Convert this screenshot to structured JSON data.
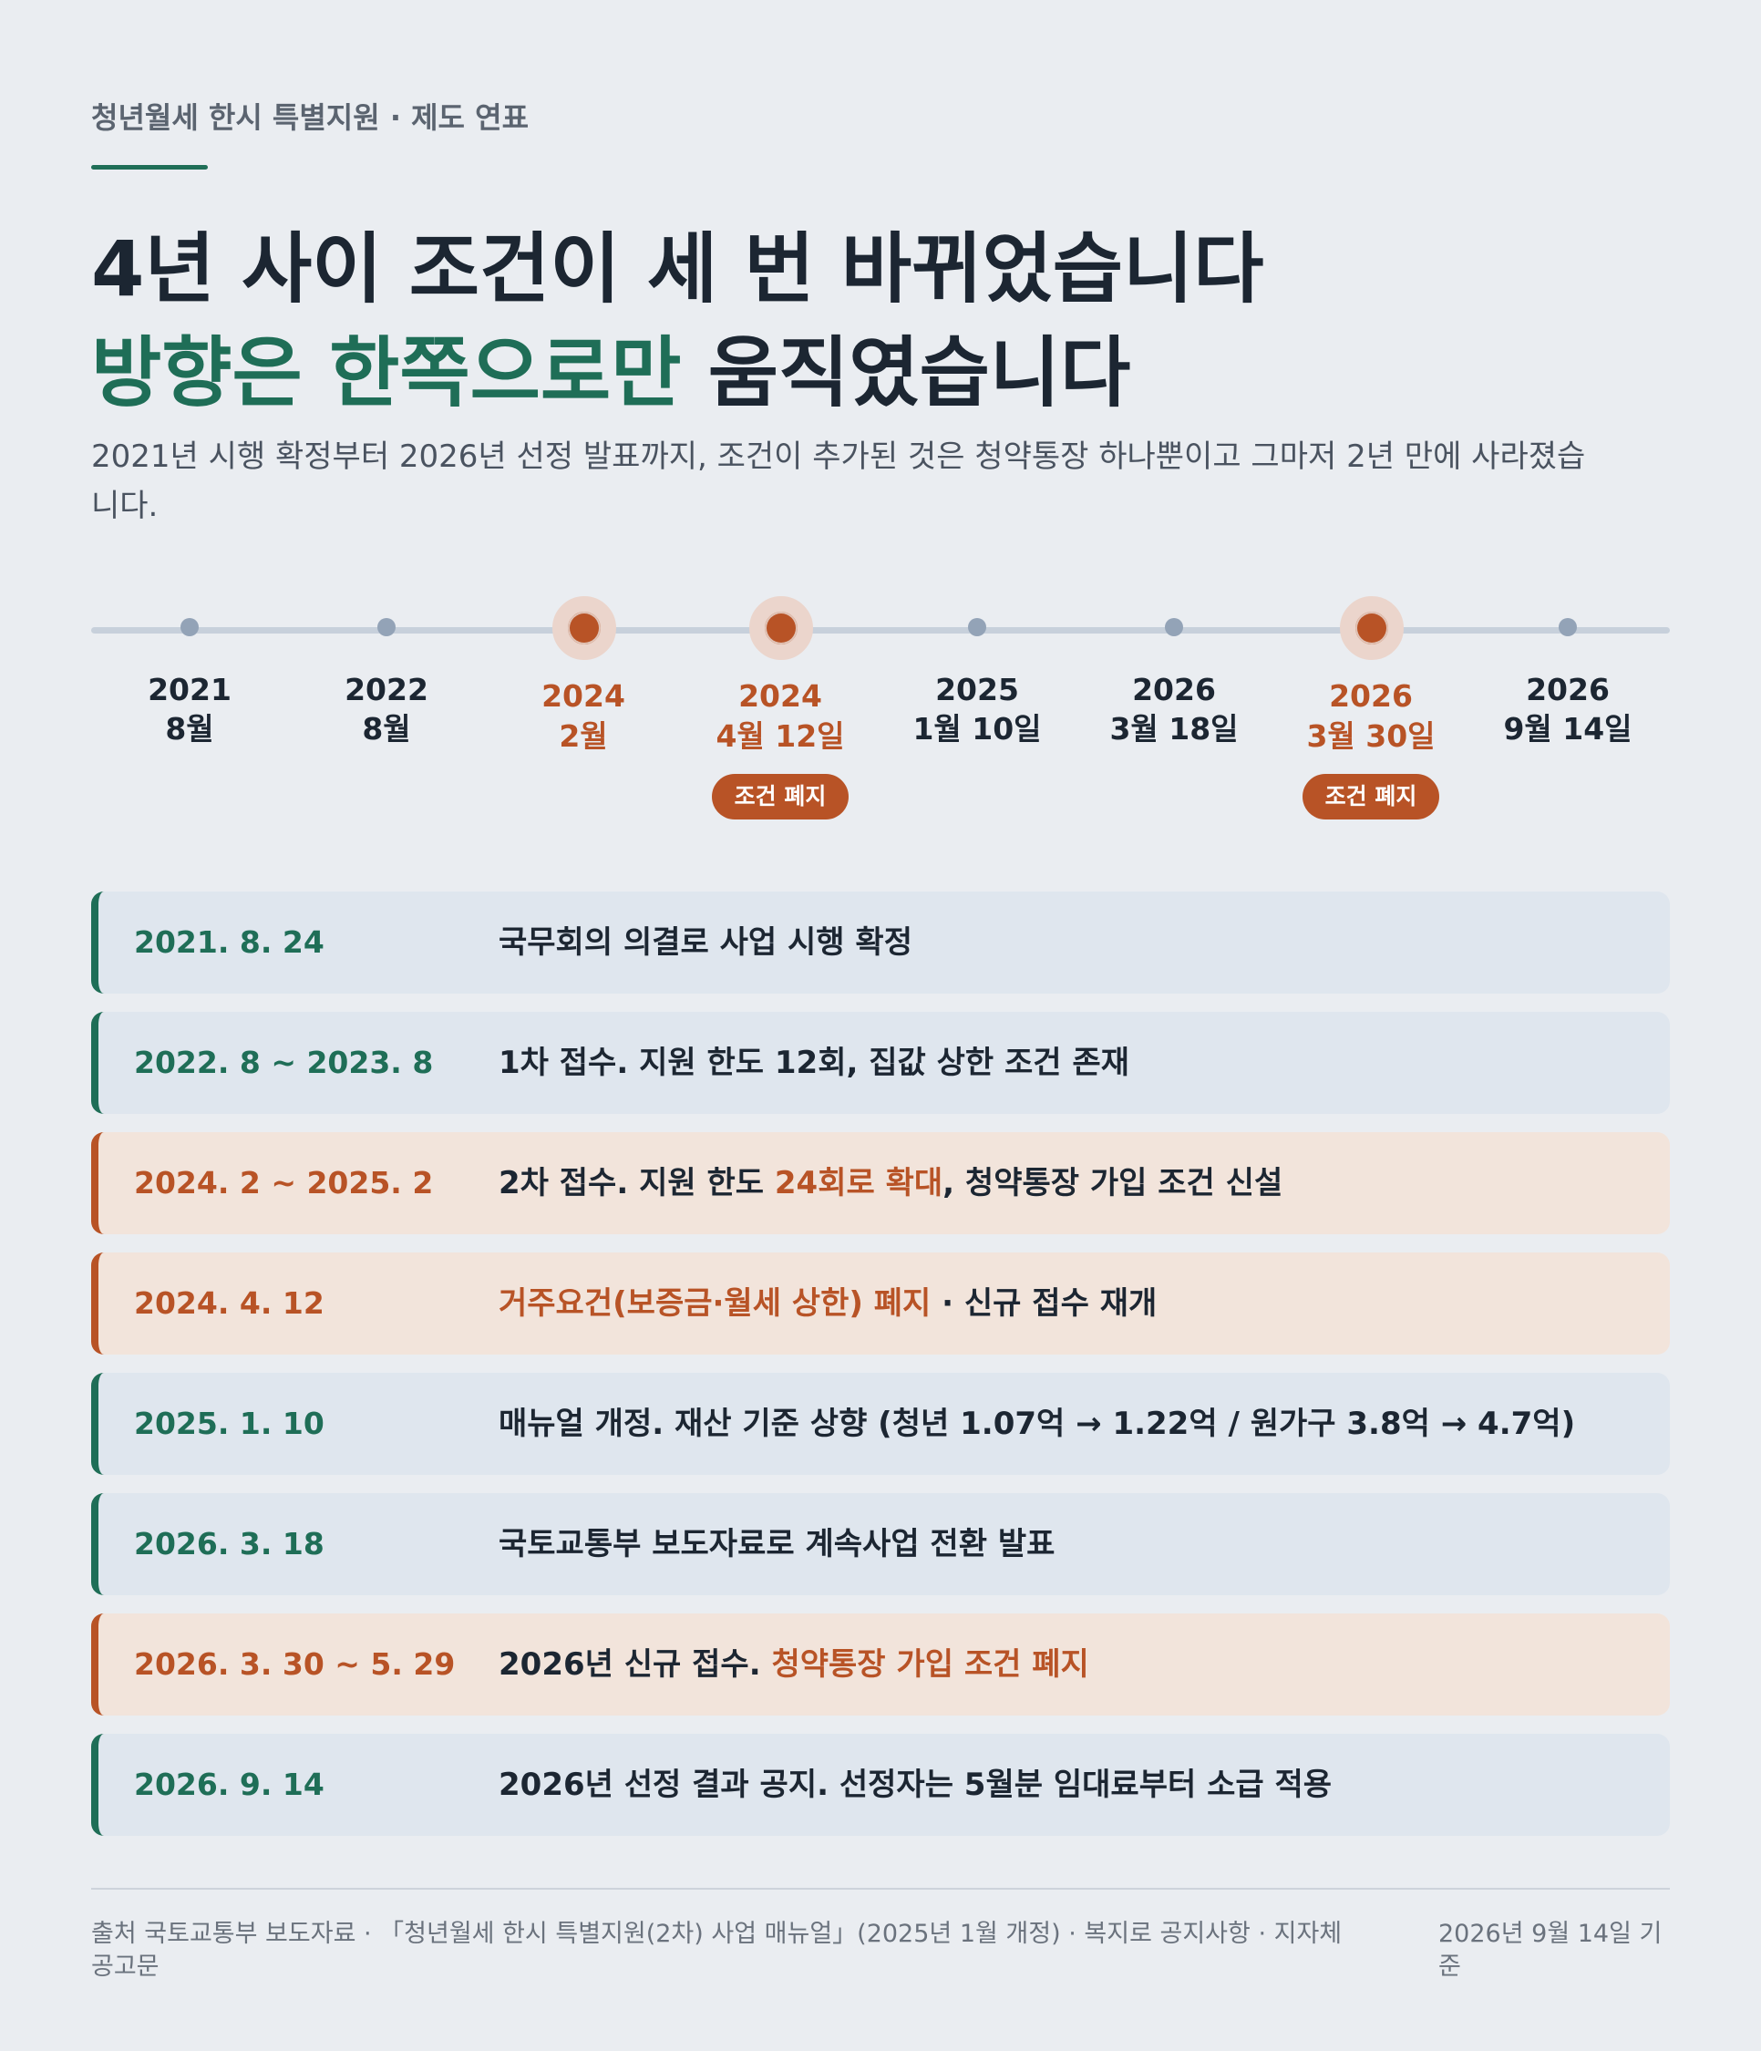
{
  "header": {
    "eyebrow": "청년월세 한시 특별지원 · 제도 연표",
    "headline_line1": "4년 사이 조건이 세 번 바뀌었습니다",
    "headline_line2_accent": "방향은 한쪽으로만",
    "headline_line2_rest": " 움직였습니다",
    "lede": "2021년 시행 확정부터 2026년 선정 발표까지, 조건이 추가된 것은 청약통장 하나뿐이고 그마저 2년 만에 사라졌습니다."
  },
  "timeline": [
    {
      "year": "2021",
      "md": "8월",
      "highlight": false,
      "badge": ""
    },
    {
      "year": "2022",
      "md": "8월",
      "highlight": false,
      "badge": ""
    },
    {
      "year": "2024",
      "md": "2월",
      "highlight": true,
      "badge": ""
    },
    {
      "year": "2024",
      "md": "4월 12일",
      "highlight": true,
      "badge": "조건 폐지"
    },
    {
      "year": "2025",
      "md": "1월 10일",
      "highlight": false,
      "badge": ""
    },
    {
      "year": "2026",
      "md": "3월 18일",
      "highlight": false,
      "badge": ""
    },
    {
      "year": "2026",
      "md": "3월 30일",
      "highlight": true,
      "badge": "조건 폐지"
    },
    {
      "year": "2026",
      "md": "9월 14일",
      "highlight": false,
      "badge": ""
    }
  ],
  "events": [
    {
      "date": "2021. 8. 24",
      "tone": "neutral",
      "parts": [
        {
          "t": "국무회의 의결로 사업 시행 확정",
          "hl": false
        }
      ]
    },
    {
      "date": "2022. 8 ~ 2023. 8",
      "tone": "neutral",
      "parts": [
        {
          "t": "1차 접수. 지원 한도 12회, 집값 상한 조건 존재",
          "hl": false
        }
      ]
    },
    {
      "date": "2024. 2 ~ 2025. 2",
      "tone": "warm",
      "parts": [
        {
          "t": "2차 접수. 지원 한도 ",
          "hl": false
        },
        {
          "t": "24회로 확대",
          "hl": true
        },
        {
          "t": ", 청약통장 가입 조건 신설",
          "hl": false
        }
      ]
    },
    {
      "date": "2024. 4. 12",
      "tone": "warm",
      "parts": [
        {
          "t": "거주요건(보증금·월세 상한) 폐지",
          "hl": true
        },
        {
          "t": " · 신규 접수 재개",
          "hl": false
        }
      ]
    },
    {
      "date": "2025. 1. 10",
      "tone": "neutral",
      "parts": [
        {
          "t": "매뉴얼 개정. 재산 기준 상향 (청년 1.07억 → 1.22억 / 원가구 3.8억 → 4.7억)",
          "hl": false
        }
      ]
    },
    {
      "date": "2026. 3. 18",
      "tone": "neutral",
      "parts": [
        {
          "t": "국토교통부 보도자료로 계속사업 전환 발표",
          "hl": false
        }
      ]
    },
    {
      "date": "2026. 3. 30 ~ 5. 29",
      "tone": "warm",
      "parts": [
        {
          "t": "2026년 신규 접수. ",
          "hl": false
        },
        {
          "t": "청약통장 가입 조건 폐지",
          "hl": true
        }
      ]
    },
    {
      "date": "2026. 9. 14",
      "tone": "neutral",
      "parts": [
        {
          "t": "2026년 선정 결과 공지. 선정자는 5월분 임대료부터 소급 적용",
          "hl": false
        }
      ]
    }
  ],
  "footer": {
    "source": "출처 국토교통부 보도자료 · 「청년월세 한시 특별지원(2차) 사업 매뉴얼」(2025년 1월 개정) · 복지로 공지사항 · 지자체 공고문",
    "as_of": "2026년 9월 14일 기준"
  },
  "colors": {
    "background": "#eaedf1",
    "accent_green": "#1f6e57",
    "accent_orange": "#b85326",
    "row_neutral": "#dfe6ee",
    "row_warm": "#f2e4db"
  }
}
